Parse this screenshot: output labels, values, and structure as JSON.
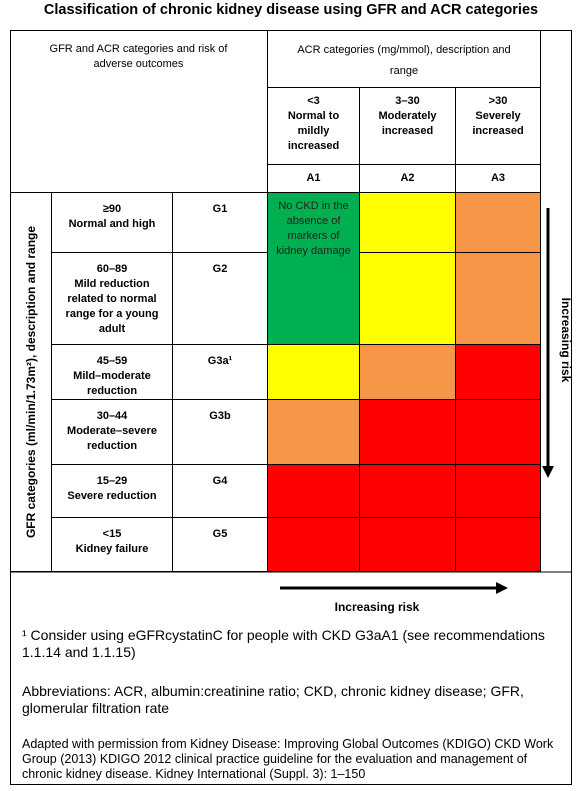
{
  "title": "Classification of chronic kidney disease using GFR and ACR categories",
  "table": {
    "corner_header": "GFR and ACR categories and risk of adverse outcomes",
    "acr_header": "ACR categories (mg/mmol), description and range",
    "gfr_header": "GFR categories (ml/min/1.73m²), description and range",
    "acr_columns": [
      {
        "range": "<3",
        "description": "Normal to mildly increased",
        "code": "A1"
      },
      {
        "range": "3–30",
        "description": "Moderately increased",
        "code": "A2"
      },
      {
        "range": ">30",
        "description": "Severely increased",
        "code": "A3"
      }
    ],
    "gfr_rows": [
      {
        "range": "≥90",
        "description": "Normal and high",
        "code": "G1"
      },
      {
        "range": "60–89",
        "description": "Mild reduction related to normal range for a young adult",
        "code": "G2"
      },
      {
        "range": "45–59",
        "description": "Mild–moderate reduction",
        "code": "G3a¹"
      },
      {
        "range": "30–44",
        "description": "Moderate–severe reduction",
        "code": "G3b"
      },
      {
        "range": "15–29",
        "description": "Severe reduction",
        "code": "G4"
      },
      {
        "range": "<15",
        "description": "Kidney failure",
        "code": "G5"
      }
    ],
    "no_ckd_note": "No CKD in the absence of markers of kidney damage",
    "risk_colors": [
      [
        "#00b050",
        "#ffff00",
        "#f79646"
      ],
      [
        "#00b050",
        "#ffff00",
        "#f79646"
      ],
      [
        "#ffff00",
        "#f79646",
        "#ff0000"
      ],
      [
        "#f79646",
        "#ff0000",
        "#ff0000"
      ],
      [
        "#ff0000",
        "#ff0000",
        "#ff0000"
      ],
      [
        "#ff0000",
        "#ff0000",
        "#ff0000"
      ]
    ],
    "vertical_arrow_label": "Increasing risk",
    "horizontal_arrow_label": "Increasing risk"
  },
  "notes": [
    "¹ Consider using eGFRcystatinC for people with CKD G3aA1 (see recommendations 1.1.14 and 1.1.15)",
    "Abbreviations: ACR, albumin:creatinine ratio; CKD, chronic kidney disease; GFR, glomerular filtration rate",
    "Adapted with permission from Kidney Disease: Improving Global Outcomes (KDIGO) CKD Work Group (2013) KDIGO 2012 clinical practice guideline for the evaluation and management of chronic kidney disease. Kidney International (Suppl. 3): 1–150"
  ]
}
